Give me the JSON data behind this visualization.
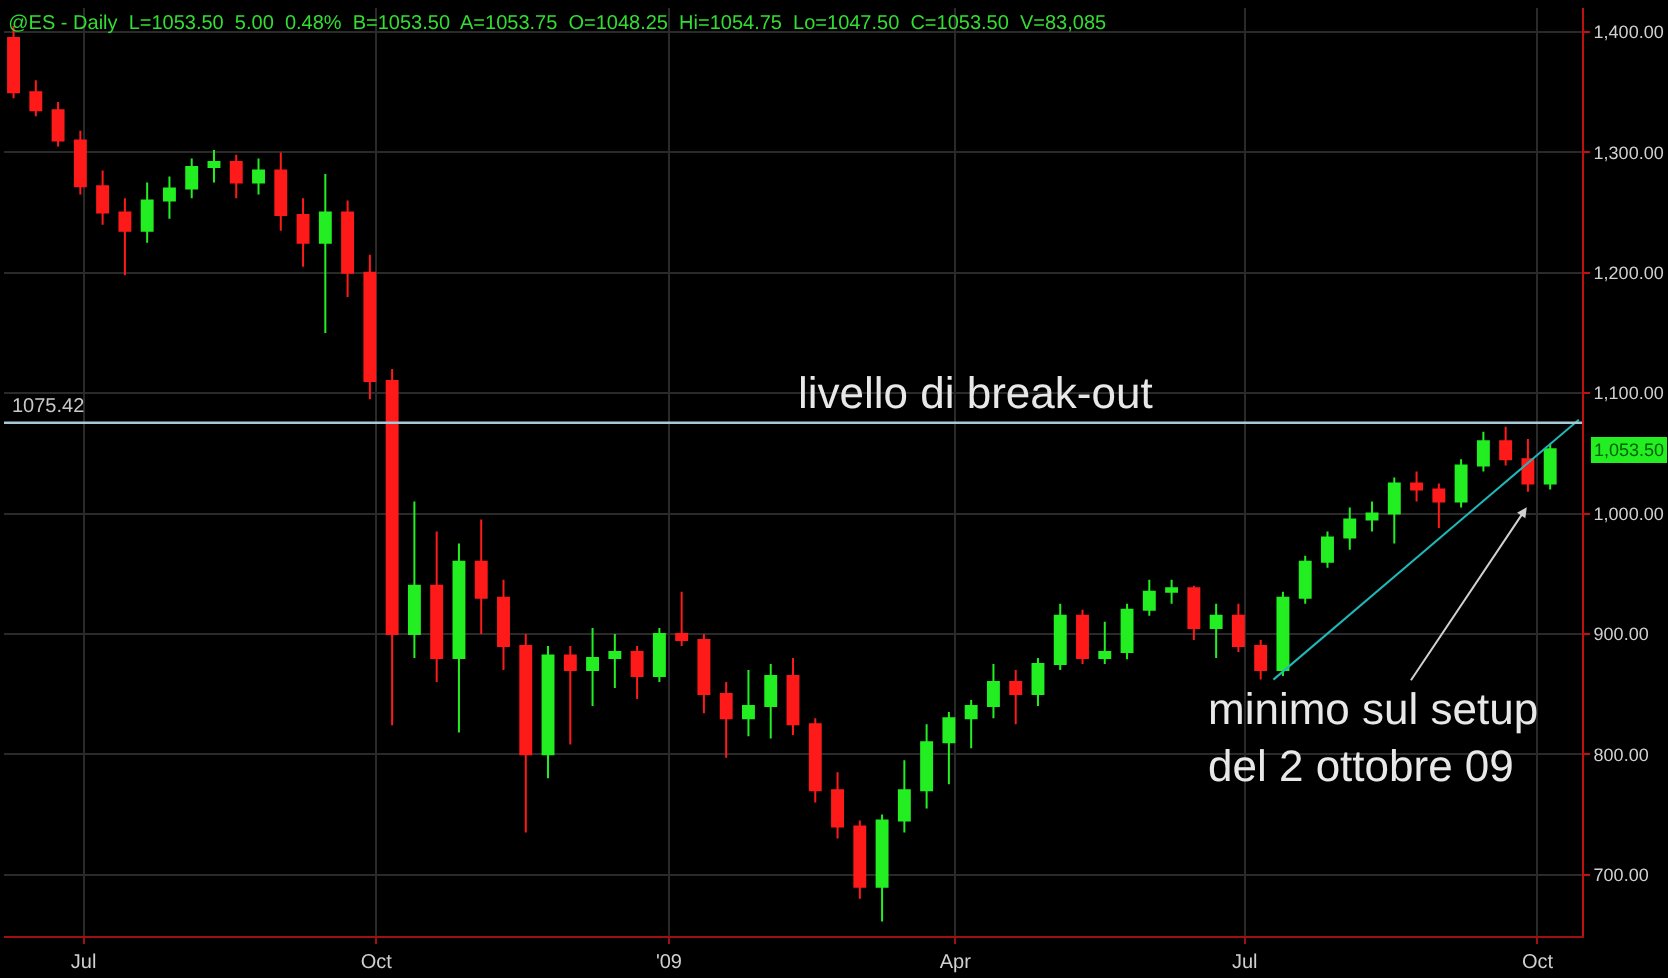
{
  "chart_data": {
    "type": "candlestick",
    "title": "@ES - Daily  L=1053.50  5.00  0.48%  B=1053.50  A=1053.75  O=1048.25  Hi=1054.75  Lo=1047.50  C=1053.50  V=83,085",
    "x": [
      "2008-06-09",
      "2008-06-16",
      "2008-06-23",
      "2008-06-30",
      "2008-07-07",
      "2008-07-14",
      "2008-07-21",
      "2008-07-28",
      "2008-08-04",
      "2008-08-11",
      "2008-08-18",
      "2008-08-25",
      "2008-09-01",
      "2008-09-08",
      "2008-09-15",
      "2008-09-22",
      "2008-09-29",
      "2008-10-06",
      "2008-10-13",
      "2008-10-20",
      "2008-10-27",
      "2008-11-03",
      "2008-11-10",
      "2008-11-17",
      "2008-11-24",
      "2008-12-01",
      "2008-12-08",
      "2008-12-15",
      "2008-12-22",
      "2008-12-29",
      "2009-01-05",
      "2009-01-12",
      "2009-01-19",
      "2009-01-26",
      "2009-02-02",
      "2009-02-09",
      "2009-02-16",
      "2009-02-23",
      "2009-03-02",
      "2009-03-09",
      "2009-03-16",
      "2009-03-23",
      "2009-03-30",
      "2009-04-06",
      "2009-04-13",
      "2009-04-20",
      "2009-04-27",
      "2009-05-04",
      "2009-05-11",
      "2009-05-18",
      "2009-05-25",
      "2009-06-01",
      "2009-06-08",
      "2009-06-15",
      "2009-06-22",
      "2009-06-29",
      "2009-07-06",
      "2009-07-13",
      "2009-07-20",
      "2009-07-27",
      "2009-08-03",
      "2009-08-10",
      "2009-08-17",
      "2009-08-24",
      "2009-08-31",
      "2009-09-07",
      "2009-09-14",
      "2009-09-21",
      "2009-09-28",
      "2009-10-05"
    ],
    "ohlc": [
      [
        1395,
        1405,
        1345,
        1350
      ],
      [
        1350,
        1360,
        1330,
        1335
      ],
      [
        1335,
        1342,
        1305,
        1310
      ],
      [
        1310,
        1318,
        1265,
        1272
      ],
      [
        1272,
        1285,
        1240,
        1250
      ],
      [
        1250,
        1262,
        1198,
        1235
      ],
      [
        1235,
        1275,
        1225,
        1260
      ],
      [
        1260,
        1280,
        1245,
        1270
      ],
      [
        1270,
        1295,
        1262,
        1288
      ],
      [
        1288,
        1302,
        1275,
        1292
      ],
      [
        1292,
        1298,
        1262,
        1275
      ],
      [
        1275,
        1295,
        1265,
        1285
      ],
      [
        1285,
        1300,
        1235,
        1248
      ],
      [
        1248,
        1262,
        1205,
        1225
      ],
      [
        1225,
        1282,
        1150,
        1250
      ],
      [
        1250,
        1260,
        1180,
        1200
      ],
      [
        1200,
        1215,
        1095,
        1110
      ],
      [
        1110,
        1120,
        824,
        900
      ],
      [
        900,
        1010,
        880,
        940
      ],
      [
        940,
        985,
        860,
        880
      ],
      [
        880,
        975,
        818,
        960
      ],
      [
        960,
        995,
        900,
        930
      ],
      [
        930,
        945,
        870,
        890
      ],
      [
        890,
        900,
        735,
        800
      ],
      [
        800,
        890,
        780,
        882
      ],
      [
        882,
        890,
        808,
        870
      ],
      [
        870,
        905,
        840,
        880
      ],
      [
        880,
        900,
        855,
        885
      ],
      [
        885,
        890,
        846,
        865
      ],
      [
        865,
        905,
        860,
        900
      ],
      [
        900,
        935,
        890,
        895
      ],
      [
        895,
        900,
        834,
        850
      ],
      [
        850,
        860,
        797,
        830
      ],
      [
        830,
        870,
        815,
        840
      ],
      [
        840,
        875,
        813,
        865
      ],
      [
        865,
        880,
        816,
        825
      ],
      [
        825,
        830,
        760,
        770
      ],
      [
        770,
        785,
        730,
        740
      ],
      [
        740,
        745,
        680,
        690
      ],
      [
        690,
        750,
        661,
        745
      ],
      [
        745,
        795,
        735,
        770
      ],
      [
        770,
        825,
        755,
        810
      ],
      [
        810,
        835,
        775,
        830
      ],
      [
        830,
        845,
        805,
        840
      ],
      [
        840,
        875,
        830,
        860
      ],
      [
        860,
        870,
        825,
        850
      ],
      [
        850,
        880,
        840,
        875
      ],
      [
        875,
        925,
        870,
        915
      ],
      [
        915,
        920,
        875,
        880
      ],
      [
        880,
        910,
        875,
        885
      ],
      [
        885,
        925,
        879,
        920
      ],
      [
        920,
        945,
        915,
        935
      ],
      [
        935,
        945,
        925,
        938
      ],
      [
        938,
        940,
        895,
        905
      ],
      [
        905,
        925,
        880,
        915
      ],
      [
        915,
        925,
        885,
        890
      ],
      [
        890,
        895,
        862,
        870
      ],
      [
        870,
        935,
        865,
        930
      ],
      [
        930,
        965,
        925,
        960
      ],
      [
        960,
        985,
        955,
        980
      ],
      [
        980,
        1005,
        970,
        995
      ],
      [
        995,
        1010,
        985,
        1000
      ],
      [
        1000,
        1030,
        975,
        1025
      ],
      [
        1025,
        1035,
        1010,
        1020
      ],
      [
        1020,
        1025,
        988,
        1010
      ],
      [
        1010,
        1045,
        1005,
        1040
      ],
      [
        1040,
        1068,
        1035,
        1060
      ],
      [
        1060,
        1072,
        1040,
        1045
      ],
      [
        1045,
        1062,
        1018,
        1025
      ],
      [
        1025,
        1058,
        1020,
        1053.5
      ]
    ],
    "colors": [
      "#ff1a1a",
      "#ff1a1a",
      "#ff1a1a",
      "#ff1a1a",
      "#ff1a1a",
      "#ff1a1a",
      "#22ee22",
      "#22ee22",
      "#22ee22",
      "#22ee22",
      "#ff1a1a",
      "#22ee22",
      "#ff1a1a",
      "#ff1a1a",
      "#22ee22",
      "#ff1a1a",
      "#ff1a1a",
      "#ff1a1a",
      "#22ee22",
      "#ff1a1a",
      "#22ee22",
      "#ff1a1a",
      "#ff1a1a",
      "#ff1a1a",
      "#22ee22",
      "#ff1a1a",
      "#22ee22",
      "#22ee22",
      "#ff1a1a",
      "#22ee22",
      "#ff1a1a",
      "#ff1a1a",
      "#ff1a1a",
      "#22ee22",
      "#22ee22",
      "#ff1a1a",
      "#ff1a1a",
      "#ff1a1a",
      "#ff1a1a",
      "#22ee22",
      "#22ee22",
      "#22ee22",
      "#22ee22",
      "#22ee22",
      "#22ee22",
      "#ff1a1a",
      "#22ee22",
      "#22ee22",
      "#ff1a1a",
      "#22ee22",
      "#22ee22",
      "#22ee22",
      "#22ee22",
      "#ff1a1a",
      "#22ee22",
      "#ff1a1a",
      "#ff1a1a",
      "#22ee22",
      "#22ee22",
      "#22ee22",
      "#22ee22",
      "#22ee22",
      "#22ee22",
      "#ff1a1a",
      "#ff1a1a",
      "#22ee22",
      "#22ee22",
      "#ff1a1a",
      "#ff1a1a",
      "#22ee22"
    ],
    "series": [
      {
        "type": "line",
        "color": "#20b8b8",
        "x": [
          "2009-07-10",
          "2009-10-14"
        ],
        "values": [
          862,
          1078
        ]
      }
    ],
    "ref_lines": [
      {
        "axis": "y",
        "value": 1075.42,
        "label": "1075.42",
        "color": "#a8c8d8"
      }
    ],
    "annotations": [
      {
        "text": "livello di break-out",
        "x": "2009-04-07",
        "y": 1075.42
      },
      "minimo sul setup\ndel 2 ottobre 09",
      "1,053.50"
    ],
    "xlim": [
      "2008-06-06",
      "2009-10-15"
    ],
    "xticks": [
      {
        "value": "2008-07-01",
        "label": "Jul"
      },
      {
        "value": "2008-10-01",
        "label": "Oct"
      },
      {
        "value": "2009-01-01",
        "label": "'09"
      },
      {
        "value": "2009-04-01",
        "label": "Apr"
      },
      {
        "value": "2009-07-01",
        "label": "Jul"
      },
      {
        "value": "2009-10-01",
        "label": "Oct"
      }
    ],
    "ylim": [
      649,
      1420
    ],
    "yticks": [
      {
        "value": 700,
        "label": "700.00"
      },
      {
        "value": 800,
        "label": "800.00"
      },
      {
        "value": 900,
        "label": "900.00"
      },
      {
        "value": 1000,
        "label": "1,000.00"
      },
      {
        "value": 1100,
        "label": "1,100.00"
      },
      {
        "value": 1200,
        "label": "1,200.00"
      },
      {
        "value": 1300,
        "label": "1,300.00"
      },
      {
        "value": 1400,
        "label": "1,400.00"
      }
    ],
    "grid": true
  }
}
